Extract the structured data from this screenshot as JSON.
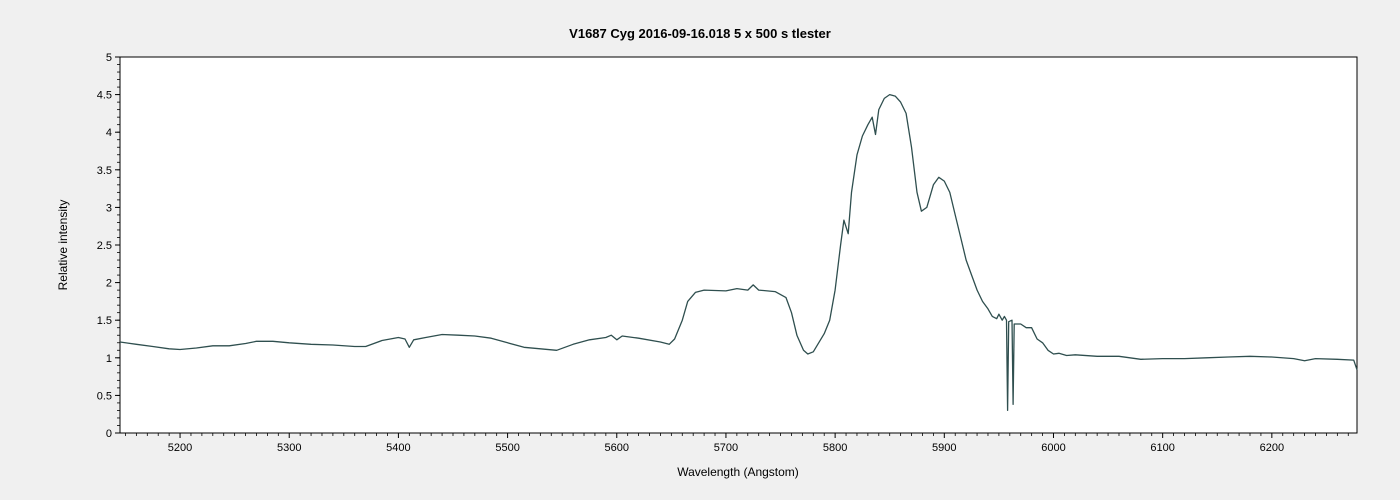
{
  "chart_data": {
    "type": "line",
    "title": "V1687 Cyg   2016-09-16.018   5 x 500 s   tlester",
    "xlabel": "Wavelength (Angstom)",
    "ylabel": "Relative intensity",
    "xlim": [
      5145,
      6278
    ],
    "ylim": [
      0,
      5
    ],
    "xticks": [
      5200,
      5300,
      5400,
      5500,
      5600,
      5700,
      5800,
      5900,
      6000,
      6100,
      6200
    ],
    "yticks": [
      0,
      0.5,
      1,
      1.5,
      2,
      2.5,
      3,
      3.5,
      4,
      4.5,
      5
    ],
    "ytick_labels": [
      "0",
      "0.5",
      "1",
      "1.5",
      "2",
      "2.5",
      "3",
      "3.5",
      "4",
      "4.5",
      "5"
    ],
    "grid": false,
    "colors": {
      "line": "#2f4f4f",
      "plot_bg": "#ffffff",
      "window_bg": "#f0f0f0",
      "frame": "#000000"
    },
    "series": [
      {
        "points": [
          [
            5145,
            1.21
          ],
          [
            5160,
            1.18
          ],
          [
            5175,
            1.15
          ],
          [
            5190,
            1.12
          ],
          [
            5200,
            1.11
          ],
          [
            5215,
            1.13
          ],
          [
            5230,
            1.16
          ],
          [
            5245,
            1.16
          ],
          [
            5260,
            1.19
          ],
          [
            5270,
            1.22
          ],
          [
            5285,
            1.22
          ],
          [
            5300,
            1.2
          ],
          [
            5320,
            1.18
          ],
          [
            5340,
            1.17
          ],
          [
            5360,
            1.15
          ],
          [
            5370,
            1.15
          ],
          [
            5385,
            1.23
          ],
          [
            5400,
            1.27
          ],
          [
            5406,
            1.25
          ],
          [
            5410,
            1.14
          ],
          [
            5414,
            1.24
          ],
          [
            5425,
            1.27
          ],
          [
            5440,
            1.31
          ],
          [
            5455,
            1.3
          ],
          [
            5470,
            1.29
          ],
          [
            5485,
            1.26
          ],
          [
            5500,
            1.2
          ],
          [
            5515,
            1.14
          ],
          [
            5530,
            1.12
          ],
          [
            5545,
            1.1
          ],
          [
            5560,
            1.18
          ],
          [
            5575,
            1.24
          ],
          [
            5590,
            1.27
          ],
          [
            5595,
            1.3
          ],
          [
            5600,
            1.24
          ],
          [
            5605,
            1.29
          ],
          [
            5620,
            1.26
          ],
          [
            5640,
            1.21
          ],
          [
            5648,
            1.18
          ],
          [
            5653,
            1.25
          ],
          [
            5660,
            1.5
          ],
          [
            5665,
            1.75
          ],
          [
            5672,
            1.87
          ],
          [
            5680,
            1.9
          ],
          [
            5700,
            1.89
          ],
          [
            5710,
            1.92
          ],
          [
            5720,
            1.9
          ],
          [
            5725,
            1.97
          ],
          [
            5730,
            1.9
          ],
          [
            5745,
            1.88
          ],
          [
            5755,
            1.8
          ],
          [
            5760,
            1.6
          ],
          [
            5765,
            1.3
          ],
          [
            5771,
            1.1
          ],
          [
            5775,
            1.05
          ],
          [
            5780,
            1.08
          ],
          [
            5785,
            1.2
          ],
          [
            5790,
            1.32
          ],
          [
            5795,
            1.5
          ],
          [
            5800,
            1.9
          ],
          [
            5805,
            2.5
          ],
          [
            5808,
            2.83
          ],
          [
            5812,
            2.65
          ],
          [
            5815,
            3.2
          ],
          [
            5820,
            3.7
          ],
          [
            5825,
            3.95
          ],
          [
            5830,
            4.1
          ],
          [
            5834,
            4.2
          ],
          [
            5837,
            3.97
          ],
          [
            5840,
            4.3
          ],
          [
            5845,
            4.45
          ],
          [
            5850,
            4.5
          ],
          [
            5855,
            4.48
          ],
          [
            5860,
            4.4
          ],
          [
            5865,
            4.25
          ],
          [
            5870,
            3.8
          ],
          [
            5875,
            3.2
          ],
          [
            5879,
            2.95
          ],
          [
            5884,
            3.0
          ],
          [
            5890,
            3.3
          ],
          [
            5895,
            3.4
          ],
          [
            5900,
            3.35
          ],
          [
            5905,
            3.2
          ],
          [
            5910,
            2.9
          ],
          [
            5915,
            2.6
          ],
          [
            5920,
            2.3
          ],
          [
            5925,
            2.1
          ],
          [
            5930,
            1.9
          ],
          [
            5935,
            1.75
          ],
          [
            5940,
            1.65
          ],
          [
            5944,
            1.55
          ],
          [
            5948,
            1.52
          ],
          [
            5950,
            1.58
          ],
          [
            5953,
            1.5
          ],
          [
            5955,
            1.55
          ],
          [
            5957,
            1.5
          ],
          [
            5958,
            0.3
          ],
          [
            5959,
            1.48
          ],
          [
            5962,
            1.5
          ],
          [
            5963,
            0.38
          ],
          [
            5964,
            1.45
          ],
          [
            5970,
            1.45
          ],
          [
            5975,
            1.4
          ],
          [
            5980,
            1.4
          ],
          [
            5985,
            1.25
          ],
          [
            5990,
            1.2
          ],
          [
            5995,
            1.1
          ],
          [
            6000,
            1.05
          ],
          [
            6005,
            1.06
          ],
          [
            6012,
            1.03
          ],
          [
            6020,
            1.04
          ],
          [
            6040,
            1.02
          ],
          [
            6060,
            1.02
          ],
          [
            6080,
            0.98
          ],
          [
            6100,
            0.99
          ],
          [
            6120,
            0.99
          ],
          [
            6140,
            1.0
          ],
          [
            6160,
            1.01
          ],
          [
            6180,
            1.02
          ],
          [
            6200,
            1.01
          ],
          [
            6220,
            0.99
          ],
          [
            6230,
            0.96
          ],
          [
            6240,
            0.99
          ],
          [
            6260,
            0.98
          ],
          [
            6275,
            0.97
          ],
          [
            6278,
            0.84
          ]
        ]
      }
    ]
  }
}
